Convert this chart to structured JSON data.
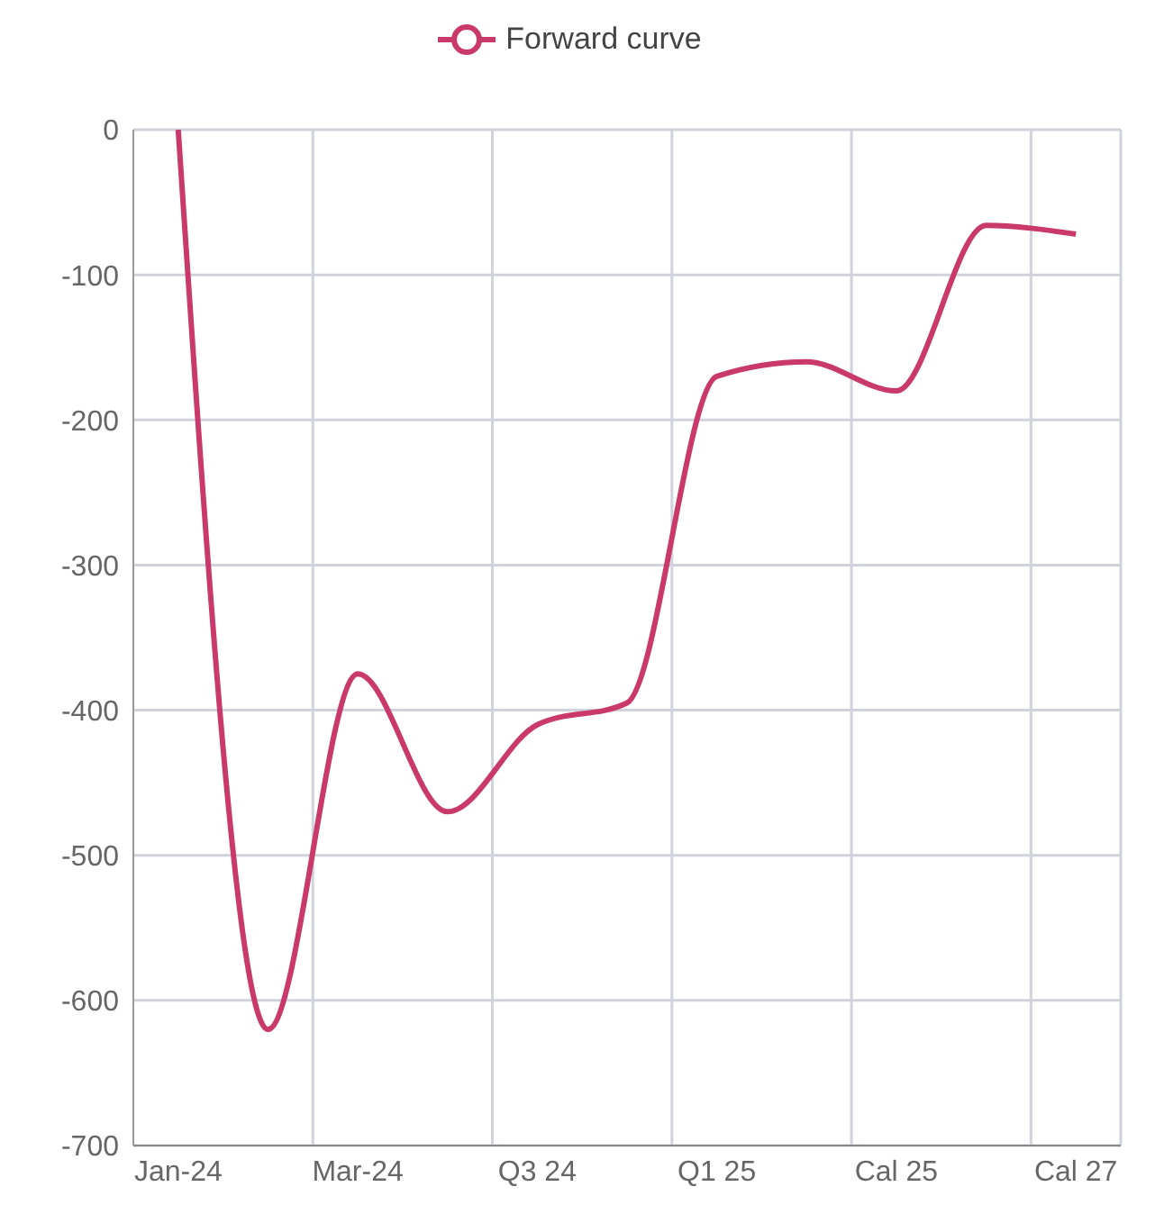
{
  "chart_data": {
    "type": "line",
    "categories": [
      "Jan-24",
      null,
      "Mar-24",
      null,
      "Q3 24",
      null,
      "Q1 25",
      null,
      "Cal 25",
      null,
      "Cal 27"
    ],
    "series": [
      {
        "name": "Forward curve",
        "color": "#c93a6a",
        "values": [
          0,
          -620,
          -375,
          -470,
          -410,
          -395,
          -170,
          -160,
          -180,
          -66,
          -72
        ]
      }
    ],
    "ylim": [
      -700,
      0
    ],
    "yticks": [
      0,
      -100,
      -200,
      -300,
      -400,
      -500,
      -600,
      -700
    ],
    "grid": true,
    "legend": "top",
    "marker": "none",
    "line_style": "solid"
  }
}
